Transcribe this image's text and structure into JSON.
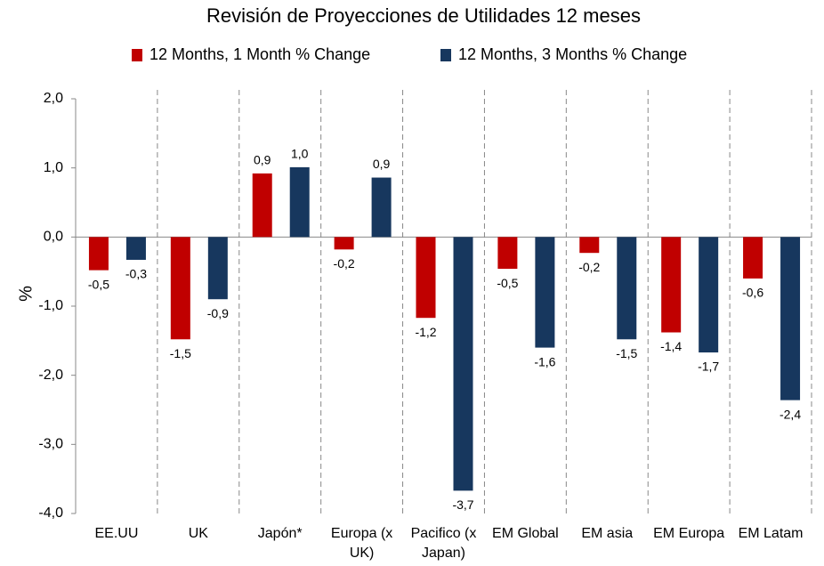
{
  "chart_data": {
    "type": "bar",
    "title": "Revisión de Proyecciones de Utilidades 12 meses",
    "y_label": "%",
    "categories": [
      "EE.UU",
      "UK",
      "Japón*",
      "Europa (x UK)",
      "Pacifico (x Japan)",
      "EM Global",
      "EM asia",
      "EM Europa",
      "EM Latam"
    ],
    "series": [
      {
        "name": "12 Months, 1 Month % Change",
        "color": "#c00000",
        "values": [
          -0.48,
          -1.48,
          0.92,
          -0.18,
          -1.17,
          -0.46,
          -0.23,
          -1.38,
          -0.6
        ],
        "value_labels": [
          "-0,5",
          "-1,5",
          "0,9",
          "-0,2",
          "-1,2",
          "-0,5",
          "-0,2",
          "-1,4",
          "-0,6"
        ]
      },
      {
        "name": "12 Months, 3 Months % Change",
        "color": "#17375e",
        "values": [
          -0.33,
          -0.9,
          1.01,
          0.86,
          -3.67,
          -1.6,
          -1.48,
          -1.67,
          -2.36
        ],
        "value_labels": [
          "-0,3",
          "-0,9",
          "1,0",
          "0,9",
          "-3,7",
          "-1,6",
          "-1,5",
          "-1,7",
          "-2,4"
        ]
      }
    ],
    "ylim": [
      -4,
      2
    ],
    "yticks": [
      {
        "value": -4,
        "label": "-4,0"
      },
      {
        "value": -3,
        "label": "-3,0"
      },
      {
        "value": -2,
        "label": "-2,0"
      },
      {
        "value": -1,
        "label": "-1,0"
      },
      {
        "value": 0,
        "label": "0,0"
      },
      {
        "value": 1,
        "label": "1,0"
      },
      {
        "value": 2,
        "label": "2,0"
      }
    ],
    "legend": "top"
  }
}
